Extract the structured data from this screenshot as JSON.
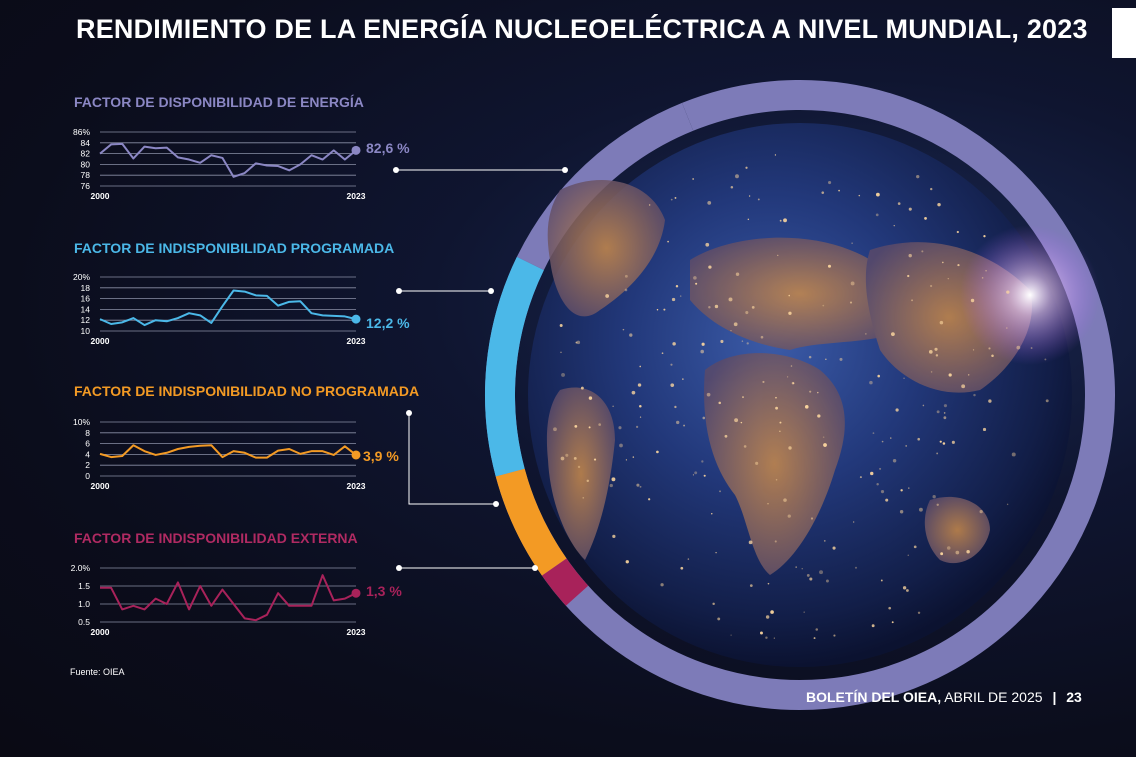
{
  "title": "RENDIMIENTO DE LA ENERGÍA NUCLEOELÉCTRICA A NIVEL MUNDIAL, 2023",
  "source": "Fuente: OIEA",
  "footer": {
    "publication": "BOLETÍN DEL OIEA,",
    "date": "ABRIL DE 2025",
    "separator": "|",
    "page": "23"
  },
  "colors": {
    "availability": "#8b87c4",
    "planned": "#4bb8e8",
    "unplanned": "#f39a24",
    "external": "#a8225a",
    "ring": "#7d7bb8"
  },
  "chart_data": [
    {
      "type": "line",
      "title": "FACTOR DE DISPONIBILIDAD DE ENERGÍA",
      "value_label": "82,6 %",
      "x_start_label": "2000",
      "x_end_label": "2023",
      "x": [
        2000,
        2001,
        2002,
        2003,
        2004,
        2005,
        2006,
        2007,
        2008,
        2009,
        2010,
        2011,
        2012,
        2013,
        2014,
        2015,
        2016,
        2017,
        2018,
        2019,
        2020,
        2021,
        2022,
        2023
      ],
      "y": [
        82.0,
        83.7,
        83.8,
        81.1,
        83.3,
        83.0,
        83.1,
        81.3,
        80.9,
        80.3,
        81.7,
        81.2,
        77.7,
        78.4,
        80.2,
        79.8,
        79.7,
        78.9,
        80.0,
        81.7,
        80.9,
        82.6,
        80.9,
        82.6
      ],
      "ylim": [
        76,
        86
      ],
      "yticks": [
        "86%",
        "84",
        "82",
        "80",
        "78",
        "76"
      ]
    },
    {
      "type": "line",
      "title": "FACTOR DE INDISPONIBILIDAD PROGRAMADA",
      "value_label": "12,2 %",
      "x_start_label": "2000",
      "x_end_label": "2023",
      "x": [
        2000,
        2001,
        2002,
        2003,
        2004,
        2005,
        2006,
        2007,
        2008,
        2009,
        2010,
        2011,
        2012,
        2013,
        2014,
        2015,
        2016,
        2017,
        2018,
        2019,
        2020,
        2021,
        2022,
        2023
      ],
      "y": [
        12.2,
        11.3,
        11.6,
        12.4,
        11.1,
        12.0,
        11.8,
        12.4,
        13.3,
        12.9,
        11.5,
        14.6,
        17.5,
        17.3,
        16.6,
        16.5,
        14.7,
        15.4,
        15.5,
        13.3,
        12.9,
        12.8,
        12.7,
        12.2
      ],
      "ylim": [
        10,
        20
      ],
      "yticks": [
        "20%",
        "18",
        "16",
        "14",
        "12",
        "10"
      ]
    },
    {
      "type": "line",
      "title": "FACTOR DE INDISPONIBILIDAD NO PROGRAMADA",
      "value_label": "3,9 %",
      "x_start_label": "2000",
      "x_end_label": "2023",
      "x": [
        2000,
        2001,
        2002,
        2003,
        2004,
        2005,
        2006,
        2007,
        2008,
        2009,
        2010,
        2011,
        2012,
        2013,
        2014,
        2015,
        2016,
        2017,
        2018,
        2019,
        2020,
        2021,
        2022,
        2023
      ],
      "y": [
        4.1,
        3.5,
        3.7,
        5.7,
        4.6,
        3.9,
        4.3,
        5.0,
        5.4,
        5.6,
        5.7,
        3.5,
        4.6,
        4.3,
        3.4,
        3.4,
        4.7,
        5.0,
        4.1,
        4.6,
        4.6,
        3.9,
        5.5,
        3.9
      ],
      "ylim": [
        0,
        10
      ],
      "yticks": [
        "10%",
        "8",
        "6",
        "4",
        "2",
        "0"
      ]
    },
    {
      "type": "line",
      "title": "FACTOR DE INDISPONIBILIDAD EXTERNA",
      "value_label": "1,3 %",
      "x_start_label": "2000",
      "x_end_label": "2023",
      "x": [
        2000,
        2001,
        2002,
        2003,
        2004,
        2005,
        2006,
        2007,
        2008,
        2009,
        2010,
        2011,
        2012,
        2013,
        2014,
        2015,
        2016,
        2017,
        2018,
        2019,
        2020,
        2021,
        2022,
        2023
      ],
      "y": [
        1.45,
        1.45,
        0.85,
        0.95,
        0.85,
        1.15,
        1.0,
        1.6,
        0.85,
        1.5,
        0.95,
        1.4,
        1.0,
        0.6,
        0.55,
        0.7,
        1.3,
        0.95,
        0.95,
        0.95,
        1.8,
        1.1,
        1.15,
        1.3
      ],
      "ylim": [
        0.5,
        2.0
      ],
      "yticks": [
        "2.0%",
        "1.5",
        "1.0",
        "0.5"
      ]
    }
  ]
}
